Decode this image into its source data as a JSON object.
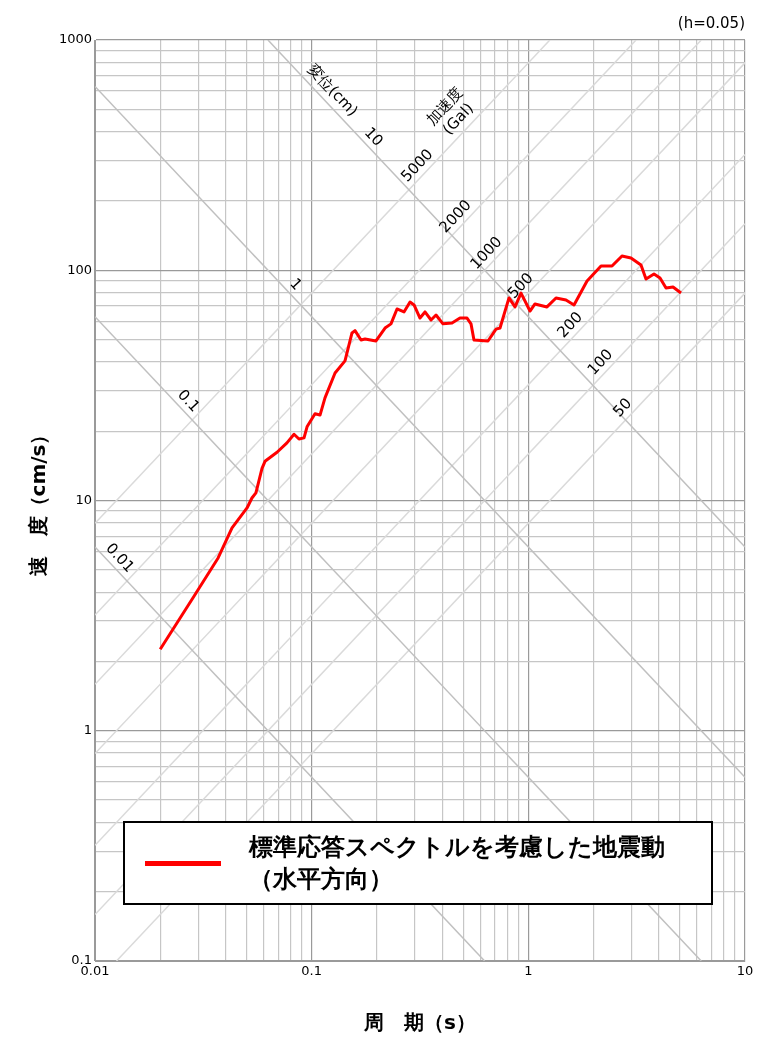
{
  "chart_data": {
    "type": "line",
    "xlabel": "周　期（s）",
    "ylabel": "速　度（cm/s）",
    "log": "xy",
    "grid": true,
    "legend": "bottom",
    "marker": "none",
    "line_style": "solid",
    "xlim": [
      0.01,
      10
    ],
    "ylim": [
      0.1,
      1000
    ],
    "xticks": [
      0.01,
      {
        "value": 0.02,
        "label": null
      },
      {
        "value": 0.03,
        "label": null
      },
      {
        "value": 0.04,
        "label": null
      },
      {
        "value": 0.05,
        "label": null
      },
      {
        "value": 0.06,
        "label": null
      },
      {
        "value": 0.07,
        "label": null
      },
      {
        "value": 0.08,
        "label": null
      },
      {
        "value": 0.09,
        "label": null
      },
      0.1,
      {
        "value": 0.2,
        "label": null
      },
      {
        "value": 0.3,
        "label": null
      },
      {
        "value": 0.4,
        "label": null
      },
      {
        "value": 0.5,
        "label": null
      },
      {
        "value": 0.6,
        "label": null
      },
      {
        "value": 0.7,
        "label": null
      },
      {
        "value": 0.8,
        "label": null
      },
      {
        "value": 0.9,
        "label": null
      },
      1,
      {
        "value": 2,
        "label": null
      },
      {
        "value": 3,
        "label": null
      },
      {
        "value": 4,
        "label": null
      },
      {
        "value": 5,
        "label": null
      },
      {
        "value": 6,
        "label": null
      },
      {
        "value": 7,
        "label": null
      },
      {
        "value": 8,
        "label": null
      },
      {
        "value": 9,
        "label": null
      },
      10
    ],
    "yticks": [
      0.1,
      {
        "value": 0.2,
        "label": null
      },
      {
        "value": 0.3,
        "label": null
      },
      {
        "value": 0.4,
        "label": null
      },
      {
        "value": 0.5,
        "label": null
      },
      {
        "value": 0.6,
        "label": null
      },
      {
        "value": 0.7,
        "label": null
      },
      {
        "value": 0.8,
        "label": null
      },
      {
        "value": 0.9,
        "label": null
      },
      1,
      {
        "value": 2,
        "label": null
      },
      {
        "value": 3,
        "label": null
      },
      {
        "value": 4,
        "label": null
      },
      {
        "value": 5,
        "label": null
      },
      {
        "value": 6,
        "label": null
      },
      {
        "value": 7,
        "label": null
      },
      {
        "value": 8,
        "label": null
      },
      {
        "value": 9,
        "label": null
      },
      10,
      {
        "value": 20,
        "label": null
      },
      {
        "value": 30,
        "label": null
      },
      {
        "value": 40,
        "label": null
      },
      {
        "value": 50,
        "label": null
      },
      {
        "value": 60,
        "label": null
      },
      {
        "value": 70,
        "label": null
      },
      {
        "value": 80,
        "label": null
      },
      {
        "value": 90,
        "label": null
      },
      100,
      {
        "value": 200,
        "label": null
      },
      {
        "value": 300,
        "label": null
      },
      {
        "value": 400,
        "label": null
      },
      {
        "value": 500,
        "label": null
      },
      {
        "value": 600,
        "label": null
      },
      {
        "value": 700,
        "label": null
      },
      {
        "value": 800,
        "label": null
      },
      {
        "value": 900,
        "label": null
      },
      1000
    ],
    "series": [
      {
        "name": "標準応答スペクトルを考慮した地震動（水平方向）",
        "color": "#ff0000",
        "x": [
          0.02,
          0.0283,
          0.037,
          0.0429,
          0.0503,
          0.053,
          0.0553,
          0.059,
          0.0609,
          0.0692,
          0.0769,
          0.0829,
          0.0874,
          0.0922,
          0.0952,
          0.1036,
          0.1093,
          0.1152,
          0.1282,
          0.1425,
          0.1535,
          0.1585,
          0.169,
          0.1763,
          0.1981,
          0.2181,
          0.2323,
          0.2477,
          0.2667,
          0.2844,
          0.2968,
          0.3162,
          0.3335,
          0.3556,
          0.3749,
          0.4037,
          0.4444,
          0.4837,
          0.5212,
          0.5438,
          0.5612,
          0.6513,
          0.7093,
          0.7401,
          0.8143,
          0.8681,
          0.9252,
          1.018,
          1.073,
          1.219,
          1.342,
          1.492,
          1.625,
          1.866,
          2.165,
          2.433,
          2.706,
          2.977,
          3.311,
          3.492,
          3.802,
          4.053,
          4.32,
          4.654,
          5.066
        ],
        "values": [
          2.26,
          3.77,
          5.63,
          7.6,
          9.28,
          10.25,
          10.8,
          13.8,
          14.8,
          16.2,
          17.8,
          19.4,
          18.5,
          18.7,
          20.9,
          23.8,
          23.5,
          27.9,
          35.8,
          40.4,
          53.4,
          54.7,
          49.8,
          50.3,
          49.3,
          56.1,
          58.5,
          67.9,
          65.9,
          72.8,
          70.7,
          62,
          65.9,
          60.8,
          63.9,
          58.5,
          59,
          62,
          62,
          58.5,
          49.8,
          49.3,
          55.5,
          56.1,
          75.8,
          69.3,
          79.6,
          66.5,
          71.4,
          69.3,
          75.8,
          74.3,
          70.7,
          89.8,
          104.3,
          104.3,
          115.3,
          113.1,
          105.4,
          91.6,
          96.3,
          92.5,
          83.7,
          84.6,
          79.6
        ]
      },
      {
        "color": "#c0c0c0",
        "x": [
          0.01,
          0.6283
        ],
        "values": [
          6.283,
          0.1
        ]
      },
      {
        "color": "#c0c0c0",
        "x": [
          0.01,
          6.283
        ],
        "values": [
          62.83,
          0.1
        ]
      },
      {
        "color": "#c0c0c0",
        "x": [
          0.01,
          10
        ],
        "values": [
          628.3,
          0.6283
        ]
      },
      {
        "color": "#c0c0c0",
        "x": [
          0.06283,
          10
        ],
        "values": [
          1000,
          6.283
        ]
      },
      {
        "color": "#dadada",
        "x": [
          0.01257,
          10
        ],
        "values": [
          0.1,
          79.58
        ]
      },
      {
        "color": "#dadada",
        "x": [
          0.01,
          10
        ],
        "values": [
          0.1592,
          159.2
        ]
      },
      {
        "color": "#dadada",
        "x": [
          0.01,
          10
        ],
        "values": [
          0.3183,
          318.3
        ]
      },
      {
        "color": "#dadada",
        "x": [
          0.01,
          10
        ],
        "values": [
          0.7958,
          795.8
        ]
      },
      {
        "color": "#dadada",
        "x": [
          0.01,
          6.283
        ],
        "values": [
          1.592,
          1000
        ]
      },
      {
        "color": "#dadada",
        "x": [
          0.01,
          3.142
        ],
        "values": [
          3.183,
          1000
        ]
      },
      {
        "color": "#dadada",
        "x": [
          0.01,
          1.257
        ],
        "values": [
          7.958,
          1000
        ]
      }
    ],
    "annotations": [
      "(h=0.05)",
      "変位(cm)",
      {
        "text": "10",
        "x": 0.178,
        "y": 353
      },
      {
        "text": "1",
        "x": 0.0778,
        "y": 80.8
      },
      {
        "text": "0.1",
        "x": 0.0249,
        "y": 25.2
      },
      {
        "text": "0.01",
        "x": 0.012,
        "y": 5.24
      },
      "加速度\n(Gal)",
      {
        "text": "5000",
        "x": 0.333,
        "y": 265
      },
      {
        "text": "2000",
        "x": 0.5,
        "y": 159.2
      },
      {
        "text": "1000",
        "x": 0.694,
        "y": 110.5
      },
      {
        "text": "500",
        "x": 1.0,
        "y": 79.58
      },
      {
        "text": "200",
        "x": 1.69,
        "y": 53.8
      },
      {
        "text": "100",
        "x": 2.33,
        "y": 37.1
      },
      {
        "text": "50",
        "x": 2.95,
        "y": 23.5
      }
    ]
  }
}
